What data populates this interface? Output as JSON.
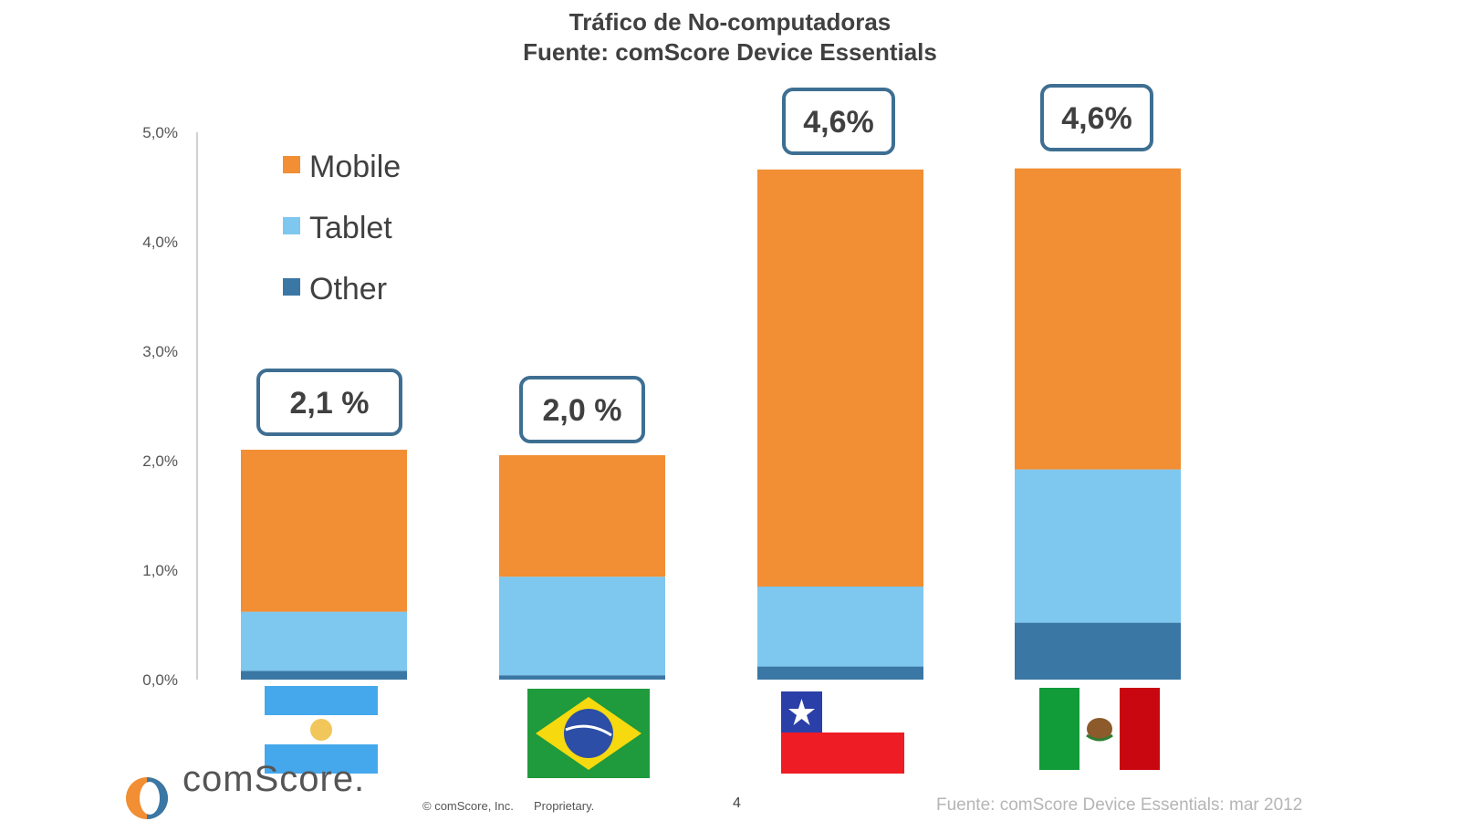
{
  "title_line1": "Tráfico de No-computadoras",
  "title_line2": "Fuente: comScore Device Essentials",
  "colors": {
    "mobile": "#F28E33",
    "tablet": "#7EC7EF",
    "other": "#3A77A5",
    "callout_border": "#3E6F92"
  },
  "chart_data": {
    "type": "bar",
    "stacked": true,
    "title": "Tráfico de No-computadoras",
    "subtitle": "Fuente: comScore Device Essentials",
    "categories": [
      "Argentina",
      "Brasil",
      "Chile",
      "México"
    ],
    "series": [
      {
        "name": "Other",
        "values": [
          0.08,
          0.04,
          0.12,
          0.52
        ]
      },
      {
        "name": "Tablet",
        "values": [
          0.54,
          0.9,
          0.73,
          1.4
        ]
      },
      {
        "name": "Mobile",
        "values": [
          1.48,
          1.11,
          3.81,
          2.75
        ]
      }
    ],
    "totals_labels": [
      "2,1 %",
      "2,0 %",
      "4,6%",
      "4,6%"
    ],
    "yticks": [
      "0,0%",
      "1,0%",
      "2,0%",
      "3,0%",
      "4,0%",
      "5,0%"
    ],
    "ylim": [
      0,
      5
    ],
    "grid": false,
    "legend_position": "top-left",
    "legend_order": [
      "Mobile",
      "Tablet",
      "Other"
    ],
    "xlabel": "",
    "ylabel": ""
  },
  "footer": {
    "logo_text": "comScore.",
    "copyright": "© comScore, Inc.",
    "proprietary": "Proprietary.",
    "page_number": "4",
    "source_note": "Fuente: comScore Device Essentials: mar 2012"
  }
}
